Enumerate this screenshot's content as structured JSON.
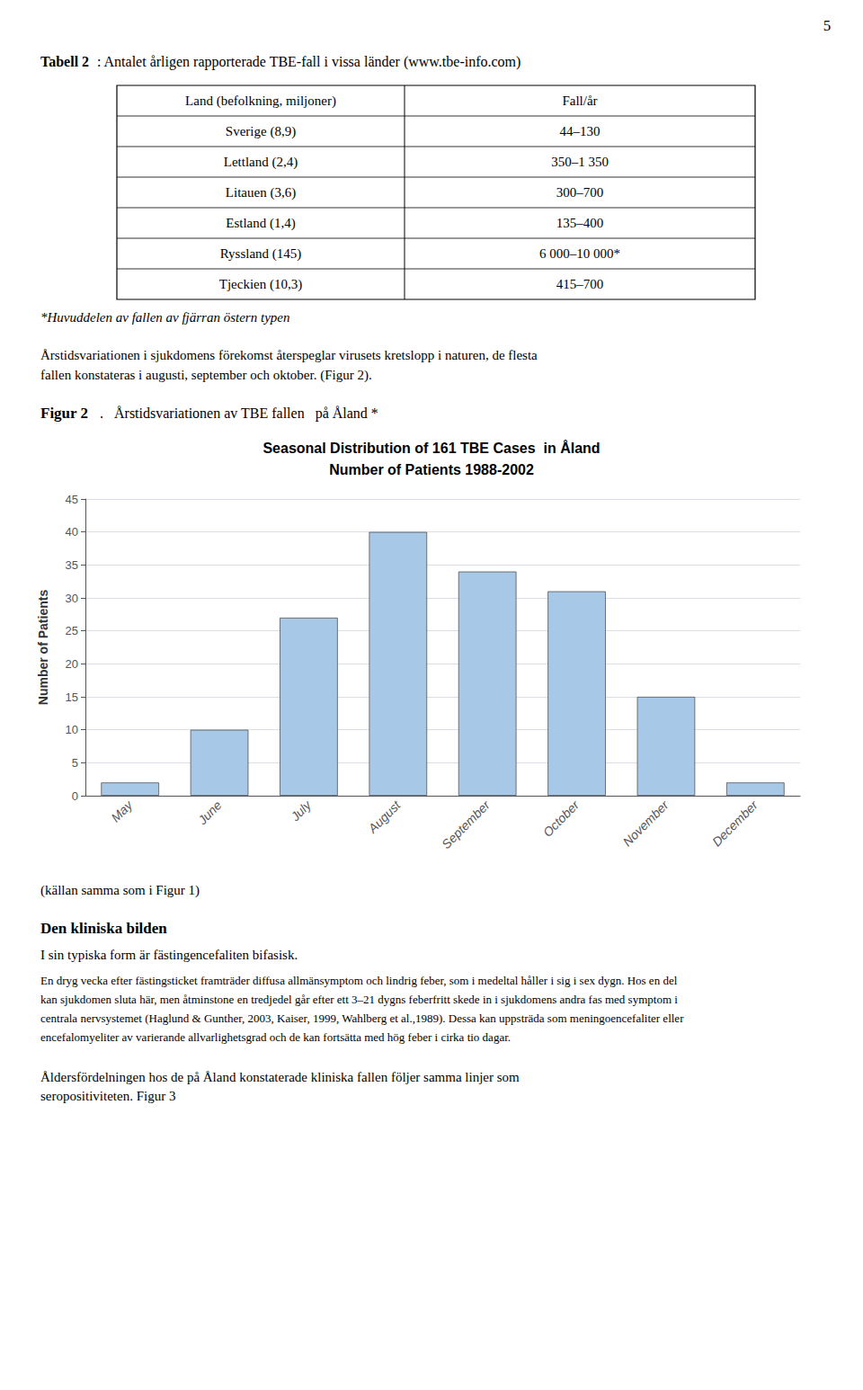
{
  "chart_data": {
    "type": "bar",
    "title": "Seasonal Distribution of 161 TBE Cases  in Åland",
    "subtitle": "Number of Patients 1988-2002",
    "ylabel": "Number of Patients",
    "categories": [
      "May",
      "June",
      "July",
      "August",
      "September",
      "October",
      "November",
      "December"
    ],
    "values": [
      2,
      10,
      27,
      40,
      34,
      31,
      15,
      2
    ],
    "color": "#a8c8e8",
    "ylim": [
      0,
      45
    ],
    "yticks": [
      0,
      5,
      10,
      15,
      20,
      25,
      30,
      35,
      40,
      45
    ],
    "grid": true,
    "annotations": [
      "5",
      "Tabell 2",
      ": Antalet årligen rapporterade TBE-fall i vissa länder (www.tbe-info.com)",
      "*Huvuddelen av fallen av fjärran östern typen",
      "Årstidsvariationen i sjukdomens förekomst återspeglar virusets kretslopp i naturen, de flesta",
      "fallen konstateras i augusti, september och oktober. (Figur 2).",
      "Figur 2",
      ".   Årstidsvariationen av TBE fallen   på Åland *",
      "(källan samma som i Figur 1)",
      "Den kliniska bilden",
      "I sin typiska form är fästingencefaliten bifasisk.",
      "En dryg vecka efter fästingsticket framträder diffusa allmänsymptom och lindrig feber, som i medeltal håller i sig i sex dygn. Hos en del",
      "kan sjukdomen sluta här, men åtminstone en tredjedel går efter ett 3–21 dygns feberfritt skede in i sjukdomens andra fas med symptom i",
      "centrala nervsystemet (Haglund & Gunther, 2003, Kaiser, 1999, Wahlberg et al.,1989). Dessa kan uppsträda som meningoencefaliter eller",
      "encefalomyeliter av varierande allvarlighetsgrad och de kan fortsätta med hög feber i cirka tio dagar.",
      "Åldersfördelningen hos de på Åland konstaterade kliniska fallen följer samma linjer som",
      "seropositiviteten. Figur 3"
    ],
    "table": {
      "headers": [
        "Land (befolkning, miljoner)",
        "Fall/år"
      ],
      "rows": [
        [
          "Sverige (8,9)",
          "44–130"
        ],
        [
          "Lettland (2,4)",
          "350–1 350"
        ],
        [
          "Litauen (3,6)",
          "300–700"
        ],
        [
          "Estland (1,4)",
          "135–400"
        ],
        [
          "Ryssland (145)",
          "6 000–10 000*"
        ],
        [
          "Tjeckien (10,3)",
          "415–700"
        ]
      ]
    }
  }
}
